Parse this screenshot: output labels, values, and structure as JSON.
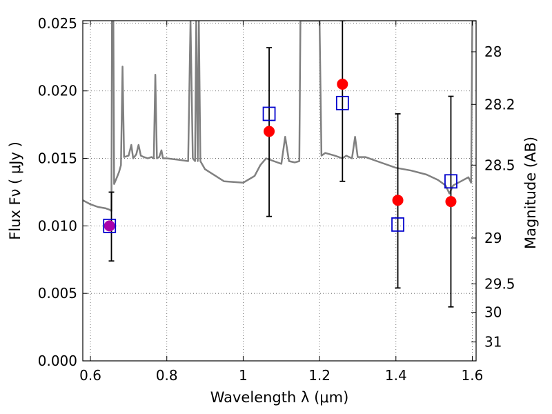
{
  "chart_data": {
    "type": "scatter",
    "title": "",
    "xlabel": "Wavelength  λ (μm)",
    "ylabel": "Flux  Fν  ( μJy )",
    "ylabel_right": "Magnitude (AB)",
    "xlim": [
      0.58,
      1.61
    ],
    "ylim": [
      0.0,
      0.0252
    ],
    "grid": true,
    "x_ticks": [
      0.6,
      0.8,
      1.0,
      1.2,
      1.4,
      1.6
    ],
    "x_tick_labels": [
      "0.6",
      "0.8",
      "1",
      "1.2",
      "1.4",
      "1.6"
    ],
    "y_ticks": [
      0.0,
      0.005,
      0.01,
      0.015,
      0.02,
      0.025
    ],
    "y_tick_labels": [
      "0.000",
      "0.005",
      "0.010",
      "0.015",
      "0.020",
      "0.025"
    ],
    "right_axis_ticks": [
      {
        "flux": 0.0229,
        "label": "28"
      },
      {
        "flux": 0.019,
        "label": "28.2"
      },
      {
        "flux": 0.0145,
        "label": "28.5"
      },
      {
        "flux": 0.0091,
        "label": "29"
      },
      {
        "flux": 0.0057,
        "label": "29.5"
      },
      {
        "flux": 0.0036,
        "label": "30"
      },
      {
        "flux": 0.0014,
        "label": "31"
      }
    ],
    "colors": {
      "spectrum": "#808080",
      "observed": "#ff0000",
      "model": "#0000cc",
      "overlap": "#aa00aa",
      "errorbar": "#000000"
    },
    "series": [
      {
        "kind": "line",
        "points": [
          [
            0.58,
            0.0119
          ],
          [
            0.6,
            0.0116
          ],
          [
            0.62,
            0.0114
          ],
          [
            0.64,
            0.0113
          ],
          [
            0.65,
            0.0112
          ],
          [
            0.655,
            0.0111
          ],
          [
            0.6565,
            0.0252
          ],
          [
            0.66,
            0.0252
          ],
          [
            0.662,
            0.0131
          ],
          [
            0.668,
            0.0135
          ],
          [
            0.675,
            0.014
          ],
          [
            0.68,
            0.0145
          ],
          [
            0.684,
            0.0218
          ],
          [
            0.688,
            0.0151
          ],
          [
            0.7,
            0.0152
          ],
          [
            0.707,
            0.016
          ],
          [
            0.712,
            0.015
          ],
          [
            0.72,
            0.0153
          ],
          [
            0.726,
            0.016
          ],
          [
            0.732,
            0.0152
          ],
          [
            0.74,
            0.0151
          ],
          [
            0.75,
            0.015
          ],
          [
            0.76,
            0.0151
          ],
          [
            0.766,
            0.015
          ],
          [
            0.77,
            0.0212
          ],
          [
            0.774,
            0.015
          ],
          [
            0.78,
            0.0151
          ],
          [
            0.786,
            0.0156
          ],
          [
            0.79,
            0.015
          ],
          [
            0.8,
            0.015
          ],
          [
            0.83,
            0.0149
          ],
          [
            0.856,
            0.0148
          ],
          [
            0.862,
            0.0252
          ],
          [
            0.868,
            0.015
          ],
          [
            0.874,
            0.0148
          ],
          [
            0.877,
            0.0252
          ],
          [
            0.881,
            0.0148
          ],
          [
            0.884,
            0.0252
          ],
          [
            0.888,
            0.0148
          ],
          [
            0.9,
            0.0142
          ],
          [
            0.95,
            0.0133
          ],
          [
            1.0,
            0.0132
          ],
          [
            1.03,
            0.0137
          ],
          [
            1.045,
            0.0145
          ],
          [
            1.06,
            0.015
          ],
          [
            1.08,
            0.0148
          ],
          [
            1.1,
            0.0146
          ],
          [
            1.11,
            0.0166
          ],
          [
            1.12,
            0.0148
          ],
          [
            1.135,
            0.0147
          ],
          [
            1.147,
            0.0148
          ],
          [
            1.15,
            0.0252
          ],
          [
            1.165,
            0.0252
          ],
          [
            1.172,
            0.0252
          ],
          [
            1.178,
            0.0252
          ],
          [
            1.183,
            0.0252
          ],
          [
            1.19,
            0.0252
          ],
          [
            1.2,
            0.0252
          ],
          [
            1.205,
            0.0152
          ],
          [
            1.215,
            0.0154
          ],
          [
            1.24,
            0.0152
          ],
          [
            1.26,
            0.015
          ],
          [
            1.27,
            0.0152
          ],
          [
            1.285,
            0.015
          ],
          [
            1.293,
            0.0166
          ],
          [
            1.3,
            0.0151
          ],
          [
            1.32,
            0.0151
          ],
          [
            1.35,
            0.0148
          ],
          [
            1.4,
            0.0143
          ],
          [
            1.44,
            0.0141
          ],
          [
            1.48,
            0.0138
          ],
          [
            1.51,
            0.0134
          ],
          [
            1.53,
            0.013
          ],
          [
            1.54,
            0.0124
          ],
          [
            1.55,
            0.013
          ],
          [
            1.57,
            0.0133
          ],
          [
            1.59,
            0.0136
          ],
          [
            1.597,
            0.0132
          ],
          [
            1.6,
            0.0252
          ],
          [
            1.61,
            0.0252
          ]
        ]
      },
      {
        "kind": "observed",
        "points": [
          {
            "x": 0.65,
            "y": 0.01
          },
          {
            "x": 1.068,
            "y": 0.017
          },
          {
            "x": 1.26,
            "y": 0.0205
          },
          {
            "x": 1.405,
            "y": 0.0119
          },
          {
            "x": 1.544,
            "y": 0.0118
          }
        ]
      },
      {
        "kind": "model",
        "points": [
          {
            "x": 0.65,
            "y": 0.01
          },
          {
            "x": 1.068,
            "y": 0.0183
          },
          {
            "x": 1.26,
            "y": 0.0191
          },
          {
            "x": 1.405,
            "y": 0.0101
          },
          {
            "x": 1.544,
            "y": 0.0133
          }
        ]
      },
      {
        "kind": "errorbar",
        "points": [
          {
            "x": 0.655,
            "ylo": 0.0074,
            "yhi": 0.0125
          },
          {
            "x": 1.068,
            "ylo": 0.0107,
            "yhi": 0.0232
          },
          {
            "x": 1.26,
            "ylo": 0.0133,
            "yhi": 0.0252
          },
          {
            "x": 1.405,
            "ylo": 0.0054,
            "yhi": 0.0183
          },
          {
            "x": 1.544,
            "ylo": 0.004,
            "yhi": 0.0196
          }
        ]
      }
    ]
  }
}
